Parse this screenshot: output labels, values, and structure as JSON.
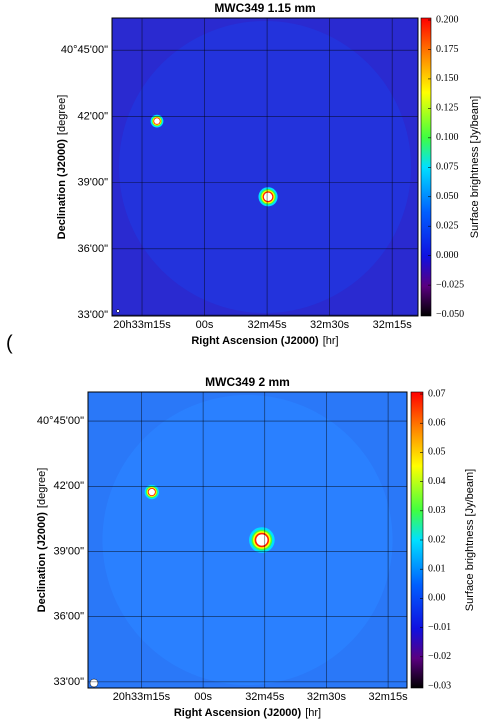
{
  "stray_text": "(",
  "chart_data": [
    {
      "type": "image",
      "title": "MWC349 1.15 mm",
      "xlabel": "Right Ascension (J2000)",
      "xlabel_unit": "[hr]",
      "ylabel": "Declination (J2000)",
      "ylabel_unit": "[degree]",
      "xlim": [
        20.5561667,
        20.5357778
      ],
      "xticks": [
        {
          "value": 20.5541667,
          "label": "20h33m15s"
        },
        {
          "value": 20.55,
          "label": "00s"
        },
        {
          "value": 20.5458333,
          "label": "32m45s"
        },
        {
          "value": 20.5416667,
          "label": "32m30s"
        },
        {
          "value": 20.5375,
          "label": "32m15s"
        }
      ],
      "ylim": [
        40.5493,
        40.7743
      ],
      "yticks": [
        {
          "value": 40.55,
          "label": "33'00\""
        },
        {
          "value": 40.6,
          "label": "36'00\""
        },
        {
          "value": 40.65,
          "label": "39'00\""
        },
        {
          "value": 40.7,
          "label": "42'00\""
        },
        {
          "value": 40.75,
          "label": "40°45'00\""
        }
      ],
      "grid": true,
      "colormap": "jet",
      "colorbar_label": "Surface brightness [Jy/beam]",
      "clim": [
        -0.0512,
        0.2017
      ],
      "cticks": [
        {
          "value": -0.05,
          "label": "−0.050"
        },
        {
          "value": -0.025,
          "label": "−0.025"
        },
        {
          "value": 0,
          "label": "0.000"
        },
        {
          "value": 0.025,
          "label": "0.025"
        },
        {
          "value": 0.05,
          "label": "0.050"
        },
        {
          "value": 0.075,
          "label": "0.075"
        },
        {
          "value": 0.1,
          "label": "0.100"
        },
        {
          "value": 0.125,
          "label": "0.125"
        },
        {
          "value": 0.15,
          "label": "0.150"
        },
        {
          "value": 0.175,
          "label": "0.175"
        },
        {
          "value": 0.2,
          "label": "0.200"
        }
      ]
    },
    {
      "type": "image",
      "title": "MWC349 2 mm",
      "xlabel": "Right Ascension (J2000)",
      "xlabel_unit": "[hr]",
      "ylabel": "Declination (J2000)",
      "ylabel_unit": "[degree]",
      "xlim": [
        20.5577778,
        20.5362222
      ],
      "xticks": [
        {
          "value": 20.5541667,
          "label": "20h33m15s"
        },
        {
          "value": 20.55,
          "label": "00s"
        },
        {
          "value": 20.5458333,
          "label": "32m45s"
        },
        {
          "value": 20.5416667,
          "label": "32m30s"
        },
        {
          "value": 20.5375,
          "label": "32m15s"
        }
      ],
      "ylim": [
        40.5453,
        40.7723
      ],
      "yticks": [
        {
          "value": 40.55,
          "label": "33'00\""
        },
        {
          "value": 40.6,
          "label": "36'00\""
        },
        {
          "value": 40.65,
          "label": "39'00\""
        },
        {
          "value": 40.7,
          "label": "42'00\""
        },
        {
          "value": 40.75,
          "label": "40°45'00\""
        }
      ],
      "grid": true,
      "colormap": "jet",
      "colorbar_label": "Surface brightness [Jy/beam]",
      "clim": [
        -0.0307,
        0.0707
      ],
      "cticks": [
        {
          "value": -0.03,
          "label": "−0.03"
        },
        {
          "value": -0.02,
          "label": "−0.02"
        },
        {
          "value": -0.01,
          "label": "−0.01"
        },
        {
          "value": 0,
          "label": "0.00"
        },
        0.01,
        0.02,
        0.03,
        0.04,
        0.05,
        0.06,
        0.07
      ]
    }
  ]
}
